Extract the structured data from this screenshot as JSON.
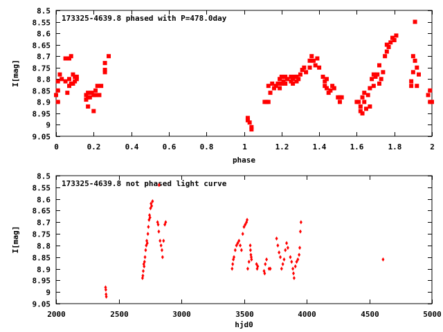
{
  "chart_data": [
    {
      "type": "scatter",
      "title": "173325-4639.8 phased with P=478.0day",
      "xlabel": "phase",
      "ylabel": "I[mag]",
      "xlim": [
        0,
        2
      ],
      "ylim": [
        9.05,
        8.5
      ],
      "y_inverted": true,
      "x_ticks": [
        0,
        0.2,
        0.4,
        0.6,
        0.8,
        1,
        1.2,
        1.4,
        1.6,
        1.8,
        2
      ],
      "x_tick_labels": [
        "0",
        "0.2",
        "0.4",
        "0.6",
        "0.8",
        "1",
        "1.2",
        "1.4",
        "1.6",
        "1.8",
        "2"
      ],
      "y_ticks": [
        8.5,
        8.55,
        8.6,
        8.65,
        8.7,
        8.75,
        8.8,
        8.85,
        8.9,
        8.95,
        9,
        9.05
      ],
      "y_tick_labels": [
        "8.5",
        "8.55",
        "8.6",
        "8.65",
        "8.7",
        "8.75",
        "8.8",
        "8.85",
        "8.9",
        "8.95",
        "9",
        "9.05"
      ],
      "grid": false,
      "series": [
        {
          "color": "#ff0000",
          "marker": "square",
          "points": [
            [
              0.0,
              8.87
            ],
            [
              0.01,
              8.81
            ],
            [
              0.01,
              8.85
            ],
            [
              0.01,
              8.9
            ],
            [
              0.02,
              8.78
            ],
            [
              0.03,
              8.8
            ],
            [
              0.05,
              8.71
            ],
            [
              0.05,
              8.81
            ],
            [
              0.06,
              8.86
            ],
            [
              0.07,
              8.71
            ],
            [
              0.07,
              8.8
            ],
            [
              0.07,
              8.83
            ],
            [
              0.08,
              8.82
            ],
            [
              0.08,
              8.7
            ],
            [
              0.09,
              8.78
            ],
            [
              0.09,
              8.82
            ],
            [
              0.1,
              8.79
            ],
            [
              0.1,
              8.81
            ],
            [
              0.11,
              8.8
            ],
            [
              0.11,
              8.79
            ],
            [
              0.16,
              8.87
            ],
            [
              0.16,
              8.89
            ],
            [
              0.17,
              8.92
            ],
            [
              0.17,
              8.86
            ],
            [
              0.17,
              8.88
            ],
            [
              0.18,
              8.88
            ],
            [
              0.19,
              8.86
            ],
            [
              0.2,
              8.94
            ],
            [
              0.2,
              8.87
            ],
            [
              0.21,
              8.87
            ],
            [
              0.21,
              8.85
            ],
            [
              0.22,
              8.83
            ],
            [
              0.23,
              8.87
            ],
            [
              0.24,
              8.83
            ],
            [
              0.26,
              8.76
            ],
            [
              0.26,
              8.77
            ],
            [
              0.26,
              8.73
            ],
            [
              0.28,
              8.7
            ],
            [
              1.02,
              8.97
            ],
            [
              1.02,
              8.98
            ],
            [
              1.03,
              8.99
            ],
            [
              1.04,
              9.01
            ],
            [
              1.04,
              9.02
            ],
            [
              1.11,
              8.9
            ],
            [
              1.12,
              8.9
            ],
            [
              1.13,
              8.9
            ],
            [
              1.13,
              8.83
            ],
            [
              1.14,
              8.86
            ],
            [
              1.15,
              8.82
            ],
            [
              1.16,
              8.84
            ],
            [
              1.17,
              8.83
            ],
            [
              1.18,
              8.82
            ],
            [
              1.19,
              8.84
            ],
            [
              1.19,
              8.8
            ],
            [
              1.2,
              8.82
            ],
            [
              1.2,
              8.79
            ],
            [
              1.21,
              8.81
            ],
            [
              1.22,
              8.82
            ],
            [
              1.22,
              8.79
            ],
            [
              1.23,
              8.8
            ],
            [
              1.25,
              8.81
            ],
            [
              1.25,
              8.79
            ],
            [
              1.26,
              8.82
            ],
            [
              1.26,
              8.8
            ],
            [
              1.27,
              8.79
            ],
            [
              1.28,
              8.81
            ],
            [
              1.28,
              8.79
            ],
            [
              1.29,
              8.8
            ],
            [
              1.3,
              8.78
            ],
            [
              1.31,
              8.76
            ],
            [
              1.32,
              8.75
            ],
            [
              1.33,
              8.77
            ],
            [
              1.35,
              8.75
            ],
            [
              1.35,
              8.72
            ],
            [
              1.36,
              8.7
            ],
            [
              1.37,
              8.72
            ],
            [
              1.38,
              8.74
            ],
            [
              1.39,
              8.71
            ],
            [
              1.4,
              8.75
            ],
            [
              1.42,
              8.79
            ],
            [
              1.43,
              8.81
            ],
            [
              1.43,
              8.83
            ],
            [
              1.44,
              8.8
            ],
            [
              1.44,
              8.84
            ],
            [
              1.45,
              8.86
            ],
            [
              1.46,
              8.85
            ],
            [
              1.47,
              8.83
            ],
            [
              1.48,
              8.84
            ],
            [
              1.5,
              8.88
            ],
            [
              1.51,
              8.9
            ],
            [
              1.51,
              8.88
            ],
            [
              1.52,
              8.88
            ],
            [
              1.6,
              8.9
            ],
            [
              1.61,
              8.9
            ],
            [
              1.62,
              8.92
            ],
            [
              1.62,
              8.94
            ],
            [
              1.63,
              8.88
            ],
            [
              1.63,
              8.95
            ],
            [
              1.64,
              8.9
            ],
            [
              1.64,
              8.86
            ],
            [
              1.65,
              8.93
            ],
            [
              1.66,
              8.87
            ],
            [
              1.67,
              8.92
            ],
            [
              1.67,
              8.84
            ],
            [
              1.68,
              8.8
            ],
            [
              1.69,
              8.83
            ],
            [
              1.69,
              8.78
            ],
            [
              1.7,
              8.79
            ],
            [
              1.71,
              8.78
            ],
            [
              1.72,
              8.82
            ],
            [
              1.72,
              8.74
            ],
            [
              1.73,
              8.8
            ],
            [
              1.74,
              8.77
            ],
            [
              1.75,
              8.7
            ],
            [
              1.76,
              8.65
            ],
            [
              1.76,
              8.68
            ],
            [
              1.77,
              8.66
            ],
            [
              1.78,
              8.64
            ],
            [
              1.79,
              8.62
            ],
            [
              1.8,
              8.63
            ],
            [
              1.81,
              8.61
            ],
            [
              1.89,
              8.83
            ],
            [
              1.89,
              8.81
            ],
            [
              1.9,
              8.77
            ],
            [
              1.9,
              8.7
            ],
            [
              1.91,
              8.72
            ],
            [
              1.91,
              8.55
            ],
            [
              1.92,
              8.83
            ],
            [
              1.92,
              8.75
            ],
            [
              1.93,
              8.78
            ],
            [
              1.98,
              8.87
            ],
            [
              1.99,
              8.85
            ],
            [
              1.99,
              8.9
            ],
            [
              2.0,
              8.9
            ]
          ]
        }
      ]
    },
    {
      "type": "scatter",
      "title": "173325-4639.8 not phased light curve",
      "xlabel": "hjd0",
      "ylabel": "I[mag]",
      "xlim": [
        2000,
        5000
      ],
      "ylim": [
        9.05,
        8.5
      ],
      "y_inverted": true,
      "x_ticks": [
        2000,
        2500,
        3000,
        3500,
        4000,
        4500,
        5000
      ],
      "x_tick_labels": [
        "2000",
        "2500",
        "3000",
        "3500",
        "4000",
        "4500",
        "5000"
      ],
      "y_ticks": [
        8.5,
        8.55,
        8.6,
        8.65,
        8.7,
        8.75,
        8.8,
        8.85,
        8.9,
        8.95,
        9,
        9.05
      ],
      "y_tick_labels": [
        "8.5",
        "8.55",
        "8.6",
        "8.65",
        "8.7",
        "8.75",
        "8.8",
        "8.85",
        "8.9",
        "8.95",
        "9",
        "9.05"
      ],
      "grid": false,
      "series": [
        {
          "color": "#ff0000",
          "marker": "diamond",
          "points": [
            [
              2395,
              8.98
            ],
            [
              2397,
              8.99
            ],
            [
              2399,
              9.01
            ],
            [
              2401,
              9.02
            ],
            [
              2690,
              8.94
            ],
            [
              2693,
              8.93
            ],
            [
              2696,
              8.91
            ],
            [
              2700,
              8.88
            ],
            [
              2703,
              8.89
            ],
            [
              2706,
              8.87
            ],
            [
              2710,
              8.85
            ],
            [
              2715,
              8.82
            ],
            [
              2720,
              8.8
            ],
            [
              2724,
              8.78
            ],
            [
              2728,
              8.79
            ],
            [
              2733,
              8.75
            ],
            [
              2737,
              8.72
            ],
            [
              2742,
              8.69
            ],
            [
              2746,
              8.67
            ],
            [
              2750,
              8.68
            ],
            [
              2754,
              8.64
            ],
            [
              2758,
              8.62
            ],
            [
              2763,
              8.63
            ],
            [
              2770,
              8.61
            ],
            [
              2810,
              8.7
            ],
            [
              2815,
              8.71
            ],
            [
              2820,
              8.74
            ],
            [
              2822,
              8.54
            ],
            [
              2830,
              8.78
            ],
            [
              2838,
              8.8
            ],
            [
              2845,
              8.82
            ],
            [
              2850,
              8.85
            ],
            [
              2858,
              8.78
            ],
            [
              2868,
              8.71
            ],
            [
              2875,
              8.7
            ],
            [
              3405,
              8.9
            ],
            [
              3410,
              8.88
            ],
            [
              3415,
              8.86
            ],
            [
              3420,
              8.85
            ],
            [
              3430,
              8.82
            ],
            [
              3440,
              8.8
            ],
            [
              3450,
              8.79
            ],
            [
              3460,
              8.78
            ],
            [
              3470,
              8.8
            ],
            [
              3480,
              8.82
            ],
            [
              3490,
              8.75
            ],
            [
              3500,
              8.72
            ],
            [
              3510,
              8.71
            ],
            [
              3520,
              8.7
            ],
            [
              3525,
              8.69
            ],
            [
              3530,
              8.9
            ],
            [
              3540,
              8.87
            ],
            [
              3550,
              8.8
            ],
            [
              3552,
              8.82
            ],
            [
              3555,
              8.84
            ],
            [
              3558,
              8.85
            ],
            [
              3560,
              8.86
            ],
            [
              3600,
              8.88
            ],
            [
              3605,
              8.9
            ],
            [
              3610,
              8.89
            ],
            [
              3660,
              8.91
            ],
            [
              3665,
              8.92
            ],
            [
              3670,
              8.88
            ],
            [
              3680,
              8.86
            ],
            [
              3700,
              8.9
            ],
            [
              3710,
              8.9
            ],
            [
              3760,
              8.77
            ],
            [
              3770,
              8.8
            ],
            [
              3780,
              8.83
            ],
            [
              3790,
              8.85
            ],
            [
              3800,
              8.9
            ],
            [
              3810,
              8.88
            ],
            [
              3820,
              8.86
            ],
            [
              3830,
              8.82
            ],
            [
              3840,
              8.79
            ],
            [
              3850,
              8.81
            ],
            [
              3870,
              8.85
            ],
            [
              3880,
              8.87
            ],
            [
              3890,
              8.9
            ],
            [
              3895,
              8.92
            ],
            [
              3900,
              8.94
            ],
            [
              3910,
              8.89
            ],
            [
              3920,
              8.87
            ],
            [
              3930,
              8.86
            ],
            [
              3940,
              8.84
            ],
            [
              3945,
              8.81
            ],
            [
              3950,
              8.74
            ],
            [
              3955,
              8.7
            ],
            [
              4610,
              8.86
            ]
          ]
        }
      ]
    }
  ]
}
